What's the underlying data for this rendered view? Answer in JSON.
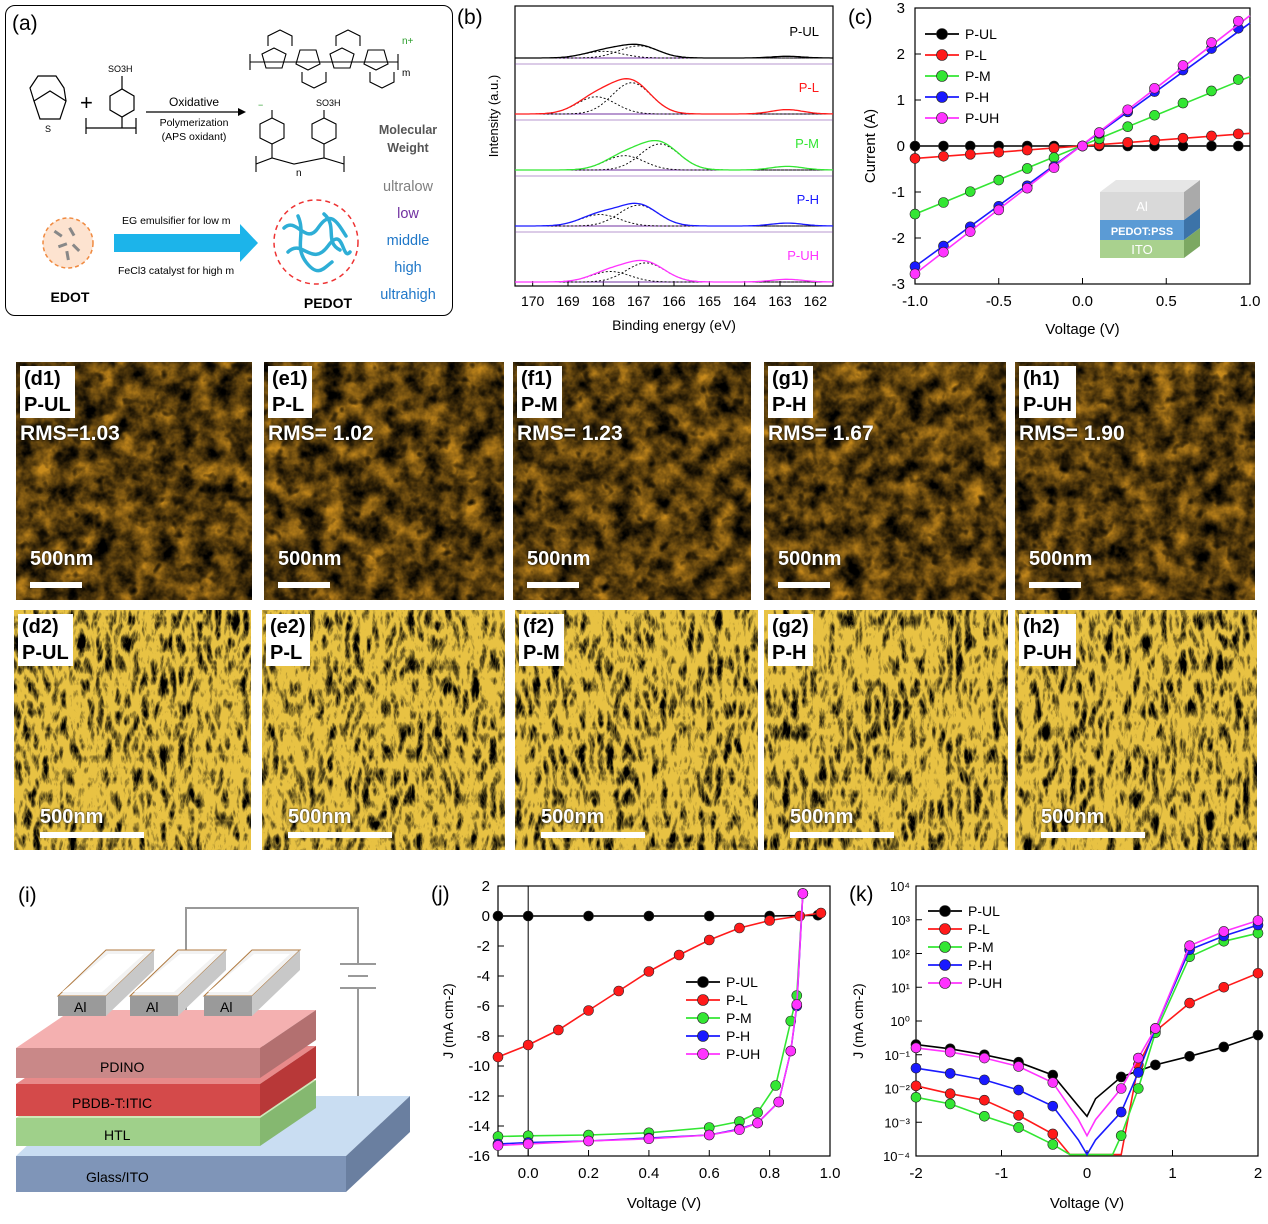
{
  "panel_a": {
    "label": "(a)",
    "sulfonate": "SO3H",
    "plus": "+",
    "arrow_top": "Oxidative",
    "arrow_mid": "Polymerization",
    "arrow_bot": "(APS oxidant)",
    "charge": "n+",
    "sub_m": "m",
    "sub_n": "n",
    "mw_title1": "Molecular",
    "mw_title2": "Weight",
    "mw_levels": [
      "ultralow",
      "low",
      "middle",
      "high",
      "ultrahigh"
    ],
    "mw_colors": [
      "#7f7f7f",
      "#7030a0",
      "#1f77c8",
      "#1f77c8",
      "#1f77c8"
    ],
    "edot_label": "EDOT",
    "pedot_label": "PEDOT",
    "emulsifier": "EG emulsifier for low m",
    "catalyst": "FeCl3 catalyst for high m"
  },
  "series_names": [
    "P-UL",
    "P-L",
    "P-M",
    "P-H",
    "P-UH"
  ],
  "series_colors": [
    "#000000",
    "#ff1a1a",
    "#33e633",
    "#1a1aff",
    "#ff33ff"
  ],
  "afm_top": [
    {
      "label": "(d1)",
      "name": "P-UL",
      "rms": "RMS=1.03",
      "scale": "500nm"
    },
    {
      "label": "(e1)",
      "name": "P-L",
      "rms": "RMS= 1.02",
      "scale": "500nm"
    },
    {
      "label": "(f1)",
      "name": "P-M",
      "rms": "RMS= 1.23",
      "scale": "500nm"
    },
    {
      "label": "(g1)",
      "name": "P-H",
      "rms": "RMS= 1.67",
      "scale": "500nm"
    },
    {
      "label": "(h1)",
      "name": "P-UH",
      "rms": "RMS= 1.90",
      "scale": "500nm"
    }
  ],
  "afm_bottom": [
    {
      "label": "(d2)",
      "name": "P-UL",
      "scale": "500nm"
    },
    {
      "label": "(e2)",
      "name": "P-L",
      "scale": "500nm"
    },
    {
      "label": "(f2)",
      "name": "P-M",
      "scale": "500nm"
    },
    {
      "label": "(g2)",
      "name": "P-H",
      "scale": "500nm"
    },
    {
      "label": "(h2)",
      "name": "P-UH",
      "scale": "500nm"
    }
  ],
  "panel_i": {
    "label": "(i)",
    "electrode": "Al",
    "layers": [
      "PDINO",
      "PBDB-T:ITIC",
      "HTL",
      "Glass/ITO"
    ]
  },
  "chart_data": [
    {
      "id": "b",
      "panel_label": "(b)",
      "type": "line",
      "title": "",
      "xlabel": "Binding energy (eV)",
      "ylabel": "Intensity (a.u.)",
      "xlim": [
        170.5,
        161.5
      ],
      "xticks": [
        170,
        169,
        168,
        167,
        166,
        165,
        164,
        163,
        162
      ],
      "series": [
        {
          "name": "P-UL",
          "peak_main": 167.0,
          "peak_side": 168.0,
          "height": 0.35
        },
        {
          "name": "P-L",
          "peak_main": 167.2,
          "peak_side": 168.2,
          "height": 0.9
        },
        {
          "name": "P-M",
          "peak_main": 166.4,
          "peak_side": 167.4,
          "height": 0.75
        },
        {
          "name": "P-H",
          "peak_main": 167.0,
          "peak_side": 168.1,
          "height": 0.6
        },
        {
          "name": "P-UH",
          "peak_main": 166.8,
          "peak_side": 167.8,
          "height": 0.55
        }
      ],
      "shoulder": 162.8
    },
    {
      "id": "c",
      "panel_label": "(c)",
      "type": "line",
      "xlabel": "Voltage (V)",
      "ylabel": "Current (A)",
      "xlim": [
        -1.0,
        1.0
      ],
      "ylim": [
        -3,
        3
      ],
      "xticks": [
        -1.0,
        -0.5,
        0.0,
        0.5,
        1.0
      ],
      "xtick_labels": [
        "-1.0",
        "-0.5",
        "0.0",
        "0.5",
        "1.0"
      ],
      "yticks": [
        -3,
        -2,
        -1,
        0,
        1,
        2,
        3
      ],
      "x": [
        -1.0,
        -0.83,
        -0.67,
        -0.5,
        -0.33,
        -0.17,
        0.0,
        0.1,
        0.27,
        0.43,
        0.6,
        0.77,
        0.93
      ],
      "series": [
        {
          "name": "P-UL",
          "slope": 0.0
        },
        {
          "name": "P-L",
          "slope": 0.27
        },
        {
          "name": "P-M",
          "slope": 1.48
        },
        {
          "name": "P-H",
          "slope": 2.62
        },
        {
          "name": "P-UH",
          "slope": 2.78
        }
      ],
      "inset_layers": [
        "Al",
        "PEDOT:PSS",
        "ITO"
      ]
    },
    {
      "id": "j",
      "panel_label": "(j)",
      "type": "line",
      "xlabel": "Voltage (V)",
      "ylabel": "J (mA cm-2)",
      "xlim": [
        -0.1,
        1.0
      ],
      "ylim": [
        -16,
        2
      ],
      "xticks": [
        0.0,
        0.2,
        0.4,
        0.6,
        0.8,
        1.0
      ],
      "xtick_labels": [
        "0.0",
        "0.2",
        "0.4",
        "0.6",
        "0.8",
        "1.0"
      ],
      "yticks": [
        -16,
        -14,
        -12,
        -10,
        -8,
        -6,
        -4,
        -2,
        0,
        2
      ],
      "series": [
        {
          "name": "P-UL",
          "points": [
            [
              -0.1,
              0
            ],
            [
              0.0,
              0
            ],
            [
              0.2,
              0
            ],
            [
              0.4,
              0
            ],
            [
              0.6,
              0
            ],
            [
              0.8,
              0
            ],
            [
              0.96,
              0.05
            ]
          ]
        },
        {
          "name": "P-L",
          "points": [
            [
              -0.1,
              -9.4
            ],
            [
              0.0,
              -8.6
            ],
            [
              0.1,
              -7.6
            ],
            [
              0.2,
              -6.3
            ],
            [
              0.3,
              -5.0
            ],
            [
              0.4,
              -3.7
            ],
            [
              0.5,
              -2.6
            ],
            [
              0.6,
              -1.6
            ],
            [
              0.7,
              -0.8
            ],
            [
              0.8,
              -0.3
            ],
            [
              0.9,
              0.0
            ],
            [
              0.97,
              0.2
            ]
          ]
        },
        {
          "name": "P-M",
          "points": [
            [
              -0.1,
              -14.7
            ],
            [
              0.0,
              -14.65
            ],
            [
              0.2,
              -14.6
            ],
            [
              0.4,
              -14.45
            ],
            [
              0.6,
              -14.1
            ],
            [
              0.7,
              -13.7
            ],
            [
              0.76,
              -13.1
            ],
            [
              0.82,
              -11.3
            ],
            [
              0.87,
              -7.0
            ],
            [
              0.89,
              -5.3
            ],
            [
              0.91,
              1.5
            ]
          ]
        },
        {
          "name": "P-H",
          "points": [
            [
              -0.1,
              -15.2
            ],
            [
              0.0,
              -15.1
            ],
            [
              0.2,
              -15.0
            ],
            [
              0.4,
              -14.8
            ],
            [
              0.6,
              -14.6
            ],
            [
              0.7,
              -14.2
            ],
            [
              0.76,
              -13.8
            ],
            [
              0.83,
              -12.4
            ],
            [
              0.87,
              -9.0
            ],
            [
              0.89,
              -6.0
            ],
            [
              0.91,
              1.5
            ]
          ]
        },
        {
          "name": "P-UH",
          "points": [
            [
              -0.1,
              -15.3
            ],
            [
              0.0,
              -15.2
            ],
            [
              0.2,
              -15.0
            ],
            [
              0.4,
              -14.85
            ],
            [
              0.6,
              -14.6
            ],
            [
              0.7,
              -14.25
            ],
            [
              0.76,
              -13.8
            ],
            [
              0.83,
              -12.4
            ],
            [
              0.87,
              -9.0
            ],
            [
              0.89,
              -5.9
            ],
            [
              0.91,
              1.5
            ]
          ]
        }
      ]
    },
    {
      "id": "k",
      "panel_label": "(k)",
      "type": "line",
      "log_y": true,
      "xlabel": "Voltage (V)",
      "ylabel": "J (mA cm-2)",
      "xlim": [
        -2,
        2
      ],
      "ylim_exp": [
        -4,
        4
      ],
      "xticks": [
        -2,
        -1,
        0,
        1,
        2
      ],
      "xtick_labels": [
        "-2",
        "-1",
        "0",
        "1",
        "2"
      ],
      "ytick_labels": [
        "10⁻⁴",
        "10⁻³",
        "10⁻²",
        "10⁻¹",
        "10⁰",
        "10¹",
        "10²",
        "10³",
        "10⁴"
      ],
      "series": [
        {
          "name": "P-UL",
          "points": [
            [
              -2,
              0.2
            ],
            [
              -1.6,
              0.15
            ],
            [
              -1.2,
              0.1
            ],
            [
              -0.8,
              0.06
            ],
            [
              -0.4,
              0.025
            ],
            [
              -0.1,
              0.003
            ],
            [
              0,
              0.0015
            ],
            [
              0.1,
              0.005
            ],
            [
              0.4,
              0.022
            ],
            [
              0.8,
              0.05
            ],
            [
              1.2,
              0.09
            ],
            [
              1.6,
              0.17
            ],
            [
              2,
              0.38
            ]
          ]
        },
        {
          "name": "P-L",
          "points": [
            [
              -2,
              0.012
            ],
            [
              -1.6,
              0.007
            ],
            [
              -1.2,
              0.0045
            ],
            [
              -0.8,
              0.0016
            ],
            [
              -0.4,
              0.00045
            ],
            [
              -0.2,
              0.00011
            ],
            [
              0.4,
              0.00011
            ],
            [
              0.6,
              0.05
            ],
            [
              0.8,
              0.5
            ],
            [
              1.2,
              3.4
            ],
            [
              1.6,
              10
            ],
            [
              2,
              26
            ]
          ]
        },
        {
          "name": "P-M",
          "points": [
            [
              -2,
              0.0055
            ],
            [
              -1.6,
              0.0035
            ],
            [
              -1.2,
              0.0015
            ],
            [
              -0.8,
              0.0007
            ],
            [
              -0.4,
              0.00022
            ],
            [
              -0.2,
              0.00011
            ],
            [
              0.3,
              0.00011
            ],
            [
              0.4,
              0.0004
            ],
            [
              0.6,
              0.01
            ],
            [
              0.8,
              0.45
            ],
            [
              1.2,
              80
            ],
            [
              1.6,
              230
            ],
            [
              2,
              400
            ]
          ]
        },
        {
          "name": "P-H",
          "points": [
            [
              -2,
              0.04
            ],
            [
              -1.6,
              0.028
            ],
            [
              -1.2,
              0.018
            ],
            [
              -0.8,
              0.009
            ],
            [
              -0.4,
              0.003
            ],
            [
              -0.1,
              0.0003
            ],
            [
              0.0,
              0.00011
            ],
            [
              0.1,
              0.0003
            ],
            [
              0.4,
              0.002
            ],
            [
              0.6,
              0.03
            ],
            [
              0.8,
              0.6
            ],
            [
              1.2,
              130
            ],
            [
              1.6,
              330
            ],
            [
              2,
              700
            ]
          ]
        },
        {
          "name": "P-UH",
          "points": [
            [
              -2,
              0.16
            ],
            [
              -1.6,
              0.12
            ],
            [
              -1.2,
              0.08
            ],
            [
              -0.8,
              0.045
            ],
            [
              -0.4,
              0.015
            ],
            [
              -0.1,
              0.0012
            ],
            [
              0,
              0.0004
            ],
            [
              0.1,
              0.0012
            ],
            [
              0.4,
              0.01
            ],
            [
              0.6,
              0.08
            ],
            [
              0.8,
              0.6
            ],
            [
              1.2,
              170
            ],
            [
              1.6,
              450
            ],
            [
              2,
              950
            ]
          ]
        }
      ]
    }
  ]
}
